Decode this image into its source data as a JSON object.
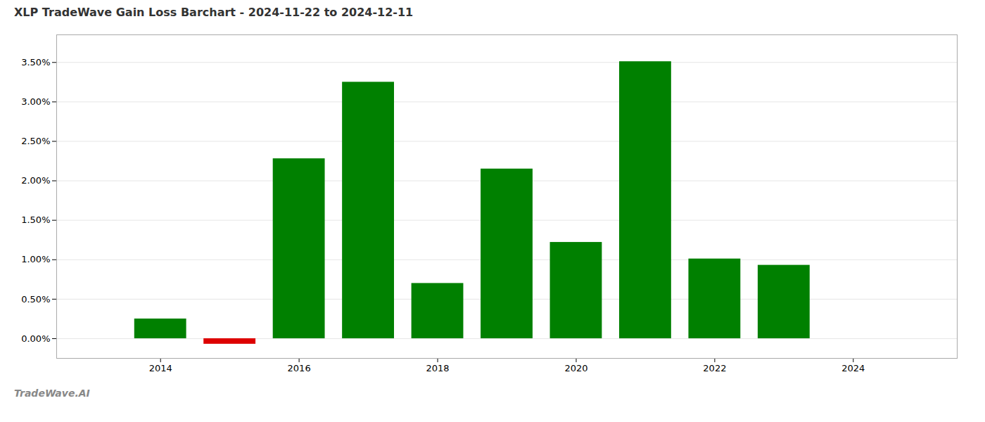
{
  "chart_data": {
    "type": "bar",
    "title": "XLP TradeWave Gain Loss Barchart - 2024-11-22 to 2024-12-11",
    "annotations": [
      "TradeWave.AI"
    ],
    "x": [
      2014,
      2015,
      2016,
      2017,
      2018,
      2019,
      2020,
      2021,
      2022,
      2023
    ],
    "values": [
      0.0025,
      -0.0007,
      0.0228,
      0.0325,
      0.007,
      0.0215,
      0.0122,
      0.0351,
      0.0101,
      0.0093
    ],
    "colors": [
      "#008000",
      "#dd0000",
      "#008000",
      "#008000",
      "#008000",
      "#008000",
      "#008000",
      "#008000",
      "#008000",
      "#008000"
    ],
    "xlim": [
      2012.5,
      2025.5
    ],
    "xticks": [
      2014,
      2016,
      2018,
      2020,
      2022,
      2024
    ],
    "ylim": [
      -0.0025,
      0.0385
    ],
    "yticks": [
      {
        "value": 0.0,
        "label": "0.00%"
      },
      {
        "value": 0.005,
        "label": "0.50%"
      },
      {
        "value": 0.01,
        "label": "1.00%"
      },
      {
        "value": 0.015,
        "label": "1.50%"
      },
      {
        "value": 0.02,
        "label": "2.00%"
      },
      {
        "value": 0.025,
        "label": "2.50%"
      },
      {
        "value": 0.03,
        "label": "3.00%"
      },
      {
        "value": 0.035,
        "label": "3.50%"
      }
    ],
    "grid": true
  }
}
